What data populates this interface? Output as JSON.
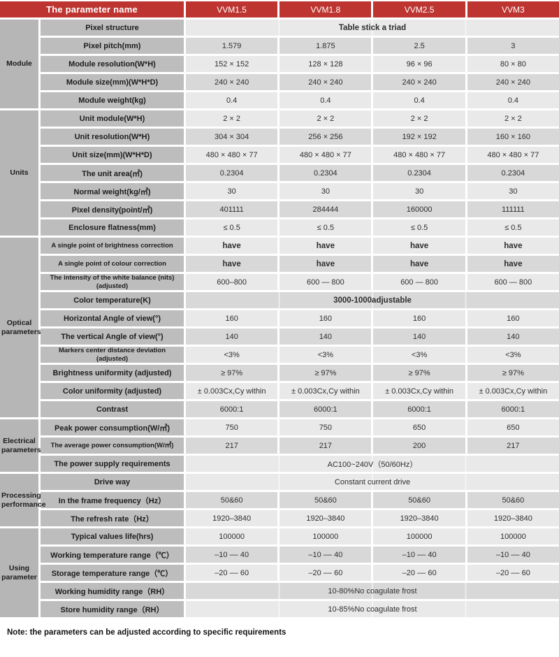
{
  "colors": {
    "header_red": "#bd3430",
    "group_bg": "#b6b6b6",
    "param_bg": "#bdbdbd",
    "row_light": "#e9e9e9",
    "row_dark": "#d8d8d8"
  },
  "table": {
    "header": {
      "param_col": "The parameter name",
      "models": [
        "VVM1.5",
        "VVM1.8",
        "VVM2.5",
        "VVM3"
      ]
    },
    "sections": [
      {
        "group": "Module",
        "rows": [
          {
            "label": "Pixel structure",
            "span": "Table stick a triad",
            "bold": true
          },
          {
            "label": "Pixel pitch(mm)",
            "values": [
              "1.579",
              "1.875",
              "2.5",
              "3"
            ]
          },
          {
            "label": "Module resolution(W*H)",
            "values": [
              "152 × 152",
              "128 × 128",
              "96 × 96",
              "80 × 80"
            ]
          },
          {
            "label": "Module size(mm)(W*H*D)",
            "values": [
              "240 × 240",
              "240 × 240",
              "240 × 240",
              "240 × 240"
            ]
          },
          {
            "label": "Module weight(kg)",
            "values": [
              "0.4",
              "0.4",
              "0.4",
              "0.4"
            ]
          }
        ]
      },
      {
        "group": "Units",
        "rows": [
          {
            "label": "Unit module(W*H)",
            "values": [
              "2 × 2",
              "2 × 2",
              "2 × 2",
              "2 × 2"
            ]
          },
          {
            "label": "Unit resolution(W*H)",
            "values": [
              "304 × 304",
              "256 × 256",
              "192 × 192",
              "160 × 160"
            ]
          },
          {
            "label": "Unit size(mm)(W*H*D)",
            "values": [
              "480 × 480 × 77",
              "480 × 480 × 77",
              "480 × 480 × 77",
              "480 × 480 × 77"
            ]
          },
          {
            "label": "The unit area(㎡)",
            "values": [
              "0.2304",
              "0.2304",
              "0.2304",
              "0.2304"
            ]
          },
          {
            "label": "Normal weight(kg/㎡)",
            "values": [
              "30",
              "30",
              "30",
              "30"
            ]
          },
          {
            "label": "Pixel density(point/㎡)",
            "values": [
              "401111",
              "284444",
              "160000",
              "111111"
            ]
          },
          {
            "label": "Enclosure flatness(mm)",
            "values": [
              "≤ 0.5",
              "≤ 0.5",
              "≤ 0.5",
              "≤ 0.5"
            ]
          }
        ]
      },
      {
        "group": "Optical parameters",
        "rows": [
          {
            "label": "A single point of brightness correction",
            "small": true,
            "bold": true,
            "values": [
              "have",
              "have",
              "have",
              "have"
            ]
          },
          {
            "label": "A single point of colour correction",
            "small": true,
            "bold": true,
            "values": [
              "have",
              "have",
              "have",
              "have"
            ]
          },
          {
            "label": "The intensity of the white balance (nits) (adjusted)",
            "small": true,
            "values": [
              "600–800",
              "600 — 800",
              "600 — 800",
              "600 — 800"
            ]
          },
          {
            "label": "Color temperature(K)",
            "span": "3000-1000adjustable",
            "bold": true
          },
          {
            "label": "Horizontal Angle of view(°)",
            "values": [
              "160",
              "160",
              "160",
              "160"
            ]
          },
          {
            "label": "The vertical Angle of view(°)",
            "values": [
              "140",
              "140",
              "140",
              "140"
            ]
          },
          {
            "label": "Markers center distance deviation (adjusted)",
            "small": true,
            "values": [
              "<3%",
              "<3%",
              "<3%",
              "<3%"
            ]
          },
          {
            "label": "Brightness uniformity (adjusted)",
            "values": [
              "≥ 97%",
              "≥ 97%",
              "≥ 97%",
              "≥ 97%"
            ]
          },
          {
            "label": "Color uniformity (adjusted)",
            "values": [
              "± 0.003Cx,Cy  within",
              "± 0.003Cx,Cy within",
              "± 0.003Cx,Cy within",
              "± 0.003Cx,Cy within"
            ]
          },
          {
            "label": "Contrast",
            "values": [
              "6000:1",
              "6000:1",
              "6000:1",
              "6000:1"
            ]
          }
        ]
      },
      {
        "group": "Electrical parameters",
        "rows": [
          {
            "label": "Peak power consumption(W/㎡)",
            "values": [
              "750",
              "750",
              "650",
              "650"
            ]
          },
          {
            "label": "The average power consumption(W/㎡)",
            "small": true,
            "values": [
              "217",
              "217",
              "200",
              "217"
            ]
          },
          {
            "label": "The power supply requirements",
            "span": "AC100~240V（50/60Hz）"
          }
        ]
      },
      {
        "group": "Processing performance",
        "rows": [
          {
            "label": "Drive way",
            "span": "Constant current drive"
          },
          {
            "label": "In the frame frequency（Hz）",
            "values": [
              "50&60",
              "50&60",
              "50&60",
              "50&60"
            ]
          },
          {
            "label": "The refresh rate（Hz）",
            "values": [
              "1920–3840",
              "1920–3840",
              "1920–3840",
              "1920–3840"
            ]
          }
        ]
      },
      {
        "group": "Using parameter",
        "rows": [
          {
            "label": "Typical values life(hrs)",
            "values": [
              "100000",
              "100000",
              "100000",
              "100000"
            ]
          },
          {
            "label": "Working temperature range（℃）",
            "values": [
              "–10 –– 40",
              "–10 –– 40",
              "–10 –– 40",
              "–10 –– 40"
            ]
          },
          {
            "label": "Storage temperature range（℃）",
            "values": [
              "–20 –– 60",
              "–20 –– 60",
              "–20 –– 60",
              "–20 –– 60"
            ]
          },
          {
            "label": "Working humidity range（RH）",
            "span": "10-80%No coagulate frost"
          },
          {
            "label": "Store humidity range（RH）",
            "span": "10-85%No coagulate frost"
          }
        ]
      }
    ]
  },
  "note": "Note: the parameters can be adjusted according to specific requirements"
}
